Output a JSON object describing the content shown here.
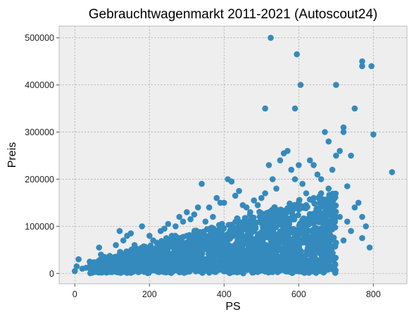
{
  "chart_data": {
    "type": "scatter",
    "title": "Gebrauchtwagenmarkt 2011-2021 (Autoscout24)",
    "xlabel": "PS",
    "ylabel": "Preis",
    "xlim": [
      -42,
      890
    ],
    "ylim": [
      -22000,
      525000
    ],
    "xticks": [
      0,
      200,
      400,
      600,
      800
    ],
    "yticks": [
      0,
      100000,
      200000,
      300000,
      400000,
      500000
    ],
    "xtick_labels": [
      "0",
      "200",
      "400",
      "600",
      "800"
    ],
    "ytick_labels": [
      "0",
      "100000",
      "200000",
      "300000",
      "400000",
      "500000"
    ],
    "grid": true,
    "colors": {
      "marker": "#348ABD",
      "plot_bg": "#EEEEEE",
      "grid": "#B2B2B2"
    },
    "points": [
      [
        0,
        5000
      ],
      [
        5,
        15000
      ],
      [
        10,
        30000
      ],
      [
        20,
        10000
      ],
      [
        30,
        12000
      ],
      [
        40,
        25000
      ],
      [
        50,
        20000
      ],
      [
        55,
        8000
      ],
      [
        60,
        15000
      ],
      [
        65,
        55000
      ],
      [
        70,
        40000
      ],
      [
        80,
        35000
      ],
      [
        100,
        20000
      ],
      [
        110,
        60000
      ],
      [
        120,
        40000
      ],
      [
        120,
        90000
      ],
      [
        130,
        70000
      ],
      [
        140,
        80000
      ],
      [
        150,
        85000
      ],
      [
        160,
        60000
      ],
      [
        180,
        100000
      ],
      [
        190,
        55000
      ],
      [
        200,
        80000
      ],
      [
        210,
        70000
      ],
      [
        220,
        65000
      ],
      [
        230,
        90000
      ],
      [
        240,
        95000
      ],
      [
        250,
        105000
      ],
      [
        260,
        80000
      ],
      [
        270,
        100000
      ],
      [
        280,
        120000
      ],
      [
        290,
        110000
      ],
      [
        300,
        130000
      ],
      [
        310,
        115000
      ],
      [
        320,
        125000
      ],
      [
        330,
        140000
      ],
      [
        340,
        190000
      ],
      [
        350,
        110000
      ],
      [
        360,
        140000
      ],
      [
        370,
        120000
      ],
      [
        380,
        160000
      ],
      [
        390,
        150000
      ],
      [
        400,
        150000
      ],
      [
        410,
        200000
      ],
      [
        420,
        195000
      ],
      [
        430,
        165000
      ],
      [
        440,
        175000
      ],
      [
        450,
        145000
      ],
      [
        460,
        140000
      ],
      [
        470,
        130000
      ],
      [
        480,
        155000
      ],
      [
        490,
        145000
      ],
      [
        500,
        160000
      ],
      [
        510,
        170000
      ],
      [
        520,
        230000
      ],
      [
        530,
        200000
      ],
      [
        540,
        180000
      ],
      [
        550,
        240000
      ],
      [
        560,
        255000
      ],
      [
        570,
        260000
      ],
      [
        580,
        220000
      ],
      [
        590,
        200000
      ],
      [
        600,
        230000
      ],
      [
        610,
        190000
      ],
      [
        620,
        170000
      ],
      [
        630,
        240000
      ],
      [
        640,
        230000
      ],
      [
        650,
        210000
      ],
      [
        660,
        200000
      ],
      [
        670,
        300000
      ],
      [
        680,
        280000
      ],
      [
        690,
        220000
      ],
      [
        700,
        250000
      ],
      [
        710,
        260000
      ],
      [
        720,
        310000
      ],
      [
        730,
        185000
      ],
      [
        740,
        250000
      ],
      [
        750,
        350000
      ],
      [
        760,
        150000
      ],
      [
        770,
        120000
      ],
      [
        780,
        100000
      ],
      [
        790,
        55000
      ],
      [
        510,
        350000
      ],
      [
        525,
        500000
      ],
      [
        590,
        350000
      ],
      [
        595,
        465000
      ],
      [
        605,
        400000
      ],
      [
        700,
        400000
      ],
      [
        720,
        300000
      ],
      [
        770,
        450000
      ],
      [
        770,
        440000
      ],
      [
        795,
        440000
      ],
      [
        800,
        295000
      ],
      [
        850,
        215000
      ],
      [
        300,
        20000
      ],
      [
        310,
        40000
      ],
      [
        330,
        60000
      ],
      [
        350,
        30000
      ],
      [
        370,
        50000
      ],
      [
        390,
        70000
      ],
      [
        410,
        40000
      ],
      [
        430,
        60000
      ],
      [
        450,
        80000
      ],
      [
        470,
        55000
      ],
      [
        490,
        75000
      ],
      [
        510,
        50000
      ],
      [
        530,
        90000
      ],
      [
        550,
        70000
      ],
      [
        570,
        60000
      ],
      [
        590,
        80000
      ],
      [
        610,
        100000
      ],
      [
        630,
        90000
      ],
      [
        650,
        110000
      ],
      [
        670,
        130000
      ],
      [
        690,
        100000
      ],
      [
        710,
        120000
      ],
      [
        730,
        110000
      ],
      [
        750,
        140000
      ],
      [
        770,
        75000
      ],
      [
        520,
        20000
      ],
      [
        540,
        40000
      ],
      [
        560,
        35000
      ],
      [
        580,
        55000
      ],
      [
        600,
        45000
      ],
      [
        620,
        65000
      ],
      [
        640,
        75000
      ],
      [
        660,
        60000
      ],
      [
        680,
        85000
      ],
      [
        700,
        65000
      ],
      [
        720,
        70000
      ],
      [
        740,
        90000
      ],
      [
        440,
        100000
      ],
      [
        460,
        110000
      ],
      [
        480,
        90000
      ],
      [
        500,
        120000
      ],
      [
        520,
        130000
      ],
      [
        540,
        105000
      ],
      [
        560,
        125000
      ],
      [
        580,
        135000
      ],
      [
        600,
        150000
      ],
      [
        620,
        145000
      ],
      [
        640,
        160000
      ],
      [
        660,
        170000
      ],
      [
        680,
        180000
      ]
    ],
    "dense_regions": [
      {
        "x": [
          40,
          700
        ],
        "y_base": [
          0,
          12000
        ],
        "y_span_at_x0": 8000,
        "y_span_slope": 230,
        "count": 2200
      }
    ]
  }
}
